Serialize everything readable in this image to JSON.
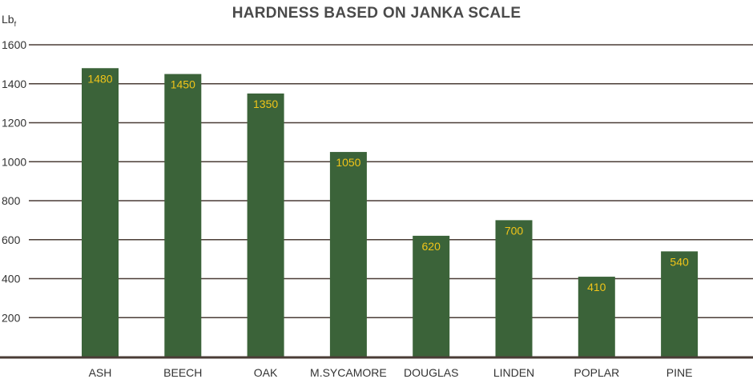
{
  "chart_data": {
    "type": "bar",
    "title": "HARDNESS BASED ON JANKA SCALE",
    "ylabel": "Lb",
    "ylabel_subscript": "f",
    "xlabel": "",
    "categories": [
      "ASH",
      "BEECH",
      "OAK",
      "M.SYCAMORE",
      "DOUGLAS",
      "LINDEN",
      "POPLAR",
      "PINE"
    ],
    "values": [
      1480,
      1450,
      1350,
      1050,
      620,
      700,
      410,
      540
    ],
    "data_labels": [
      "1480",
      "1450",
      "1350",
      "1050",
      "620",
      "700",
      "410",
      "540"
    ],
    "yticks": [
      200,
      400,
      600,
      800,
      1000,
      1200,
      1400,
      1600
    ],
    "ytick_labels": [
      "200",
      "400",
      "600",
      "800",
      "1000",
      "1200",
      "1400",
      "1600"
    ],
    "ylim": [
      0,
      1600
    ],
    "grid": true,
    "legend": "none",
    "colors": {
      "bar": "#3b6339",
      "data_label": "#f0c419",
      "grid": "#4a3c36",
      "text": "#333333",
      "title": "#4a4a4a"
    }
  }
}
